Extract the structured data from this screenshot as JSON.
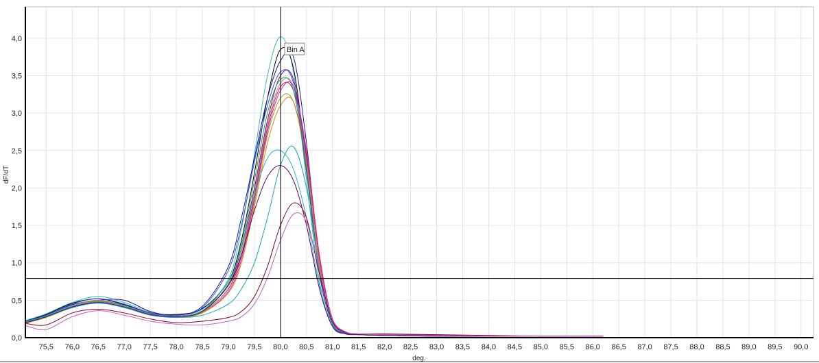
{
  "chart_data": {
    "type": "line",
    "xlabel": "deg.",
    "ylabel": "dF/dT",
    "xlim": [
      75.1,
      90.24
    ],
    "ylim": [
      0,
      4.42
    ],
    "x_ticks": [
      "75,5",
      "76,0",
      "76,5",
      "77,0",
      "77,5",
      "78,0",
      "78,5",
      "79,0",
      "79,5",
      "80,0",
      "80,5",
      "81,0",
      "81,5",
      "82,0",
      "82,5",
      "83,0",
      "83,5",
      "84,0",
      "84,5",
      "85,0",
      "85,5",
      "86,0",
      "86,5",
      "87,0",
      "87,5",
      "88,0",
      "88,5",
      "89,0",
      "89,5",
      "90,0"
    ],
    "y_ticks": [
      "0,0",
      "0,5",
      "1,0",
      "1,5",
      "2,0",
      "2,5",
      "3,0",
      "3,5",
      "4,0"
    ],
    "grid": true,
    "legend": "none",
    "threshold_y": 0.79,
    "cursor_x": 80.0,
    "bin_label": "Bin A",
    "x": [
      75.1,
      75.5,
      76.0,
      76.5,
      77.0,
      77.5,
      78.0,
      78.5,
      79.0,
      79.25,
      79.5,
      79.75,
      80.0,
      80.25,
      80.5,
      80.75,
      81.0,
      81.25,
      81.5,
      82.0,
      83.0,
      84.0,
      85.0,
      86.2
    ],
    "series": [
      {
        "color": "#3cb4b4",
        "values": [
          0.23,
          0.32,
          0.47,
          0.55,
          0.47,
          0.34,
          0.31,
          0.38,
          0.78,
          1.45,
          2.45,
          3.5,
          4.02,
          3.55,
          2.1,
          0.75,
          0.15,
          0.06,
          0.04,
          0.03,
          0.02,
          0.02,
          0.02,
          0.02
        ]
      },
      {
        "color": "#000000",
        "values": [
          0.22,
          0.31,
          0.46,
          0.52,
          0.44,
          0.33,
          0.31,
          0.39,
          0.75,
          1.3,
          2.2,
          3.2,
          3.85,
          3.6,
          2.3,
          0.85,
          0.18,
          0.06,
          0.04,
          0.03,
          0.02,
          0.02,
          0.02,
          0.02
        ]
      },
      {
        "color": "#1a1a8c",
        "values": [
          0.21,
          0.3,
          0.44,
          0.5,
          0.5,
          0.35,
          0.3,
          0.42,
          0.95,
          1.6,
          2.4,
          3.2,
          3.7,
          3.75,
          2.6,
          1.0,
          0.2,
          0.07,
          0.05,
          0.04,
          0.03,
          0.02,
          0.02,
          0.02
        ]
      },
      {
        "color": "#800080",
        "values": [
          0.2,
          0.28,
          0.42,
          0.49,
          0.43,
          0.32,
          0.29,
          0.36,
          0.7,
          1.2,
          2.0,
          2.9,
          3.5,
          3.45,
          2.4,
          0.95,
          0.2,
          0.07,
          0.05,
          0.04,
          0.03,
          0.02,
          0.02,
          0.02
        ]
      },
      {
        "color": "#d02040",
        "values": [
          0.2,
          0.28,
          0.41,
          0.48,
          0.42,
          0.31,
          0.28,
          0.35,
          0.65,
          1.1,
          1.9,
          2.8,
          3.35,
          3.3,
          2.45,
          1.05,
          0.25,
          0.08,
          0.05,
          0.04,
          0.03,
          0.02,
          0.02,
          0.02
        ]
      },
      {
        "color": "#a0a020",
        "values": [
          0.19,
          0.27,
          0.4,
          0.47,
          0.41,
          0.31,
          0.27,
          0.33,
          0.6,
          1.0,
          1.8,
          2.7,
          3.2,
          3.15,
          2.3,
          0.95,
          0.2,
          0.07,
          0.04,
          0.03,
          0.02,
          0.02,
          0.02,
          0.02
        ]
      },
      {
        "color": "#20a050",
        "values": [
          0.21,
          0.29,
          0.43,
          0.5,
          0.43,
          0.32,
          0.29,
          0.36,
          0.72,
          1.25,
          2.1,
          3.0,
          3.45,
          3.3,
          2.2,
          0.85,
          0.18,
          0.06,
          0.04,
          0.03,
          0.02,
          0.02,
          0.02,
          0.02
        ]
      },
      {
        "color": "#d020c0",
        "values": [
          0.2,
          0.28,
          0.42,
          0.48,
          0.42,
          0.31,
          0.28,
          0.34,
          0.62,
          1.05,
          1.85,
          2.75,
          3.3,
          3.35,
          2.5,
          1.1,
          0.25,
          0.08,
          0.05,
          0.04,
          0.03,
          0.02,
          0.02,
          0.02
        ]
      },
      {
        "color": "#909090",
        "values": [
          0.21,
          0.29,
          0.43,
          0.5,
          0.43,
          0.32,
          0.29,
          0.35,
          0.66,
          1.15,
          1.95,
          2.85,
          3.4,
          3.35,
          2.35,
          0.95,
          0.2,
          0.07,
          0.04,
          0.03,
          0.02,
          0.02,
          0.02,
          0.02
        ]
      },
      {
        "color": "#e08020",
        "values": [
          0.2,
          0.28,
          0.42,
          0.49,
          0.42,
          0.31,
          0.28,
          0.34,
          0.6,
          1.0,
          1.75,
          2.6,
          3.1,
          3.15,
          2.35,
          1.0,
          0.22,
          0.07,
          0.04,
          0.03,
          0.02,
          0.02,
          0.02,
          0.02
        ]
      },
      {
        "color": "#3050e0",
        "values": [
          0.22,
          0.3,
          0.45,
          0.52,
          0.45,
          0.33,
          0.3,
          0.4,
          0.9,
          1.5,
          2.35,
          3.1,
          3.55,
          3.4,
          2.25,
          0.85,
          0.18,
          0.06,
          0.04,
          0.03,
          0.02,
          0.02,
          0.02,
          0.02
        ]
      },
      {
        "color": "#20a0c0",
        "values": [
          0.2,
          0.28,
          0.4,
          0.46,
          0.4,
          0.3,
          0.27,
          0.3,
          0.45,
          0.65,
          1.0,
          1.6,
          2.3,
          2.55,
          2.0,
          0.9,
          0.2,
          0.07,
          0.04,
          0.03,
          0.02,
          0.02,
          0.02,
          0.02
        ]
      },
      {
        "color": "#30b0b0",
        "values": [
          0.21,
          0.29,
          0.42,
          0.48,
          0.42,
          0.31,
          0.28,
          0.36,
          0.75,
          1.2,
          1.9,
          2.4,
          2.5,
          2.25,
          1.6,
          0.7,
          0.15,
          0.05,
          0.04,
          0.03,
          0.02,
          0.02,
          0.02,
          0.02
        ]
      },
      {
        "color": "#600060",
        "values": [
          0.2,
          0.28,
          0.41,
          0.47,
          0.41,
          0.31,
          0.28,
          0.35,
          0.7,
          1.1,
          1.7,
          2.15,
          2.3,
          2.1,
          1.5,
          0.65,
          0.15,
          0.05,
          0.04,
          0.03,
          0.02,
          0.02,
          0.02,
          0.02
        ]
      },
      {
        "color": "#800020",
        "values": [
          0.19,
          0.17,
          0.33,
          0.38,
          0.33,
          0.25,
          0.2,
          0.22,
          0.27,
          0.35,
          0.55,
          0.95,
          1.5,
          1.8,
          1.6,
          0.85,
          0.22,
          0.07,
          0.05,
          0.05,
          0.04,
          0.03,
          0.02,
          0.02
        ]
      },
      {
        "color": "#c060c0",
        "values": [
          0.16,
          0.11,
          0.28,
          0.36,
          0.3,
          0.22,
          0.18,
          0.17,
          0.22,
          0.28,
          0.45,
          0.8,
          1.3,
          1.65,
          1.55,
          0.9,
          0.25,
          0.08,
          0.05,
          0.04,
          0.03,
          0.02,
          0.02,
          0.02
        ]
      }
    ]
  }
}
